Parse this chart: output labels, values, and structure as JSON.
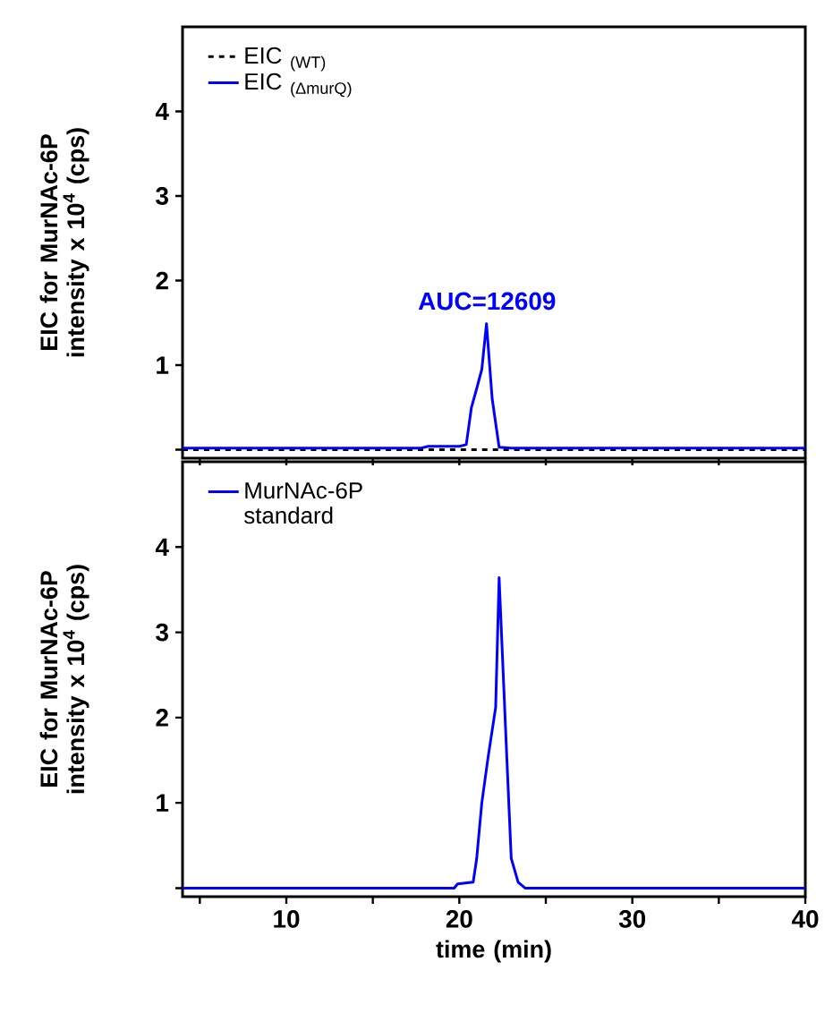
{
  "chart_data": [
    {
      "type": "line",
      "ylabel": "EIC for MurNAc-6P intensity x 10$^{4}$ (cps)",
      "xlim": [
        4,
        40
      ],
      "ylim": [
        -0.1,
        5
      ],
      "xticks": [
        {
          "value": 5,
          "label": null
        },
        {
          "value": 10,
          "label": null
        },
        {
          "value": 15,
          "label": null
        },
        {
          "value": 20,
          "label": null
        },
        {
          "value": 25,
          "label": null
        },
        {
          "value": 30,
          "label": null
        },
        {
          "value": 35,
          "label": null
        },
        {
          "value": 40,
          "label": null
        }
      ],
      "yticks": [
        {
          "value": 0,
          "label": null
        },
        1,
        2,
        3,
        4
      ],
      "tick_labels": "y",
      "legend": "top left",
      "grid": false,
      "annotations": [
        {
          "text": "AUC=12609",
          "x": 21.6,
          "y": 1.5
        }
      ],
      "series": [
        {
          "name": "EIC $_{(WT)}$",
          "color": "#000000",
          "line_style": "dashed",
          "x": [
            4,
            10,
            20,
            30,
            40
          ],
          "values": [
            0,
            0,
            0,
            0,
            0
          ]
        },
        {
          "name": "EIC $_{(ΔmurQ)}$",
          "color": "#0000ff",
          "line_style": "solid",
          "x": [
            4,
            10,
            17.8,
            18.2,
            20.0,
            20.4,
            20.7,
            21.0,
            21.3,
            21.57,
            21.9,
            22.3,
            23,
            30,
            40
          ],
          "values": [
            0.02,
            0.02,
            0.02,
            0.04,
            0.04,
            0.06,
            0.5,
            0.72,
            0.95,
            1.49,
            0.6,
            0.03,
            0.02,
            0.02,
            0.02
          ]
        }
      ]
    },
    {
      "type": "line",
      "ylabel": "EIC for MurNAc-6P intensity x 10$^{4}$ (cps)",
      "xlabel": "time (min)",
      "xlim": [
        4,
        40
      ],
      "ylim": [
        -0.1,
        5
      ],
      "xticks": [
        {
          "value": 5,
          "label": null
        },
        10,
        {
          "value": 15,
          "label": null
        },
        20,
        {
          "value": 25,
          "label": null
        },
        30,
        {
          "value": 35,
          "label": null
        },
        40
      ],
      "yticks": [
        {
          "value": 0,
          "label": null
        },
        1,
        2,
        3,
        4
      ],
      "legend": "top left",
      "grid": false,
      "series": [
        {
          "name": "MurNAc-6P standard",
          "color": "#0000ff",
          "line_style": "solid",
          "x": [
            4,
            10,
            19.7,
            19.9,
            20.8,
            21.0,
            21.3,
            21.66,
            22.1,
            22.3,
            22.7,
            23.0,
            23.4,
            23.8,
            30,
            40
          ],
          "values": [
            0,
            0,
            0,
            0.05,
            0.07,
            0.34,
            1.0,
            1.53,
            2.12,
            3.64,
            1.74,
            0.35,
            0.07,
            0,
            0,
            0
          ]
        }
      ]
    }
  ]
}
